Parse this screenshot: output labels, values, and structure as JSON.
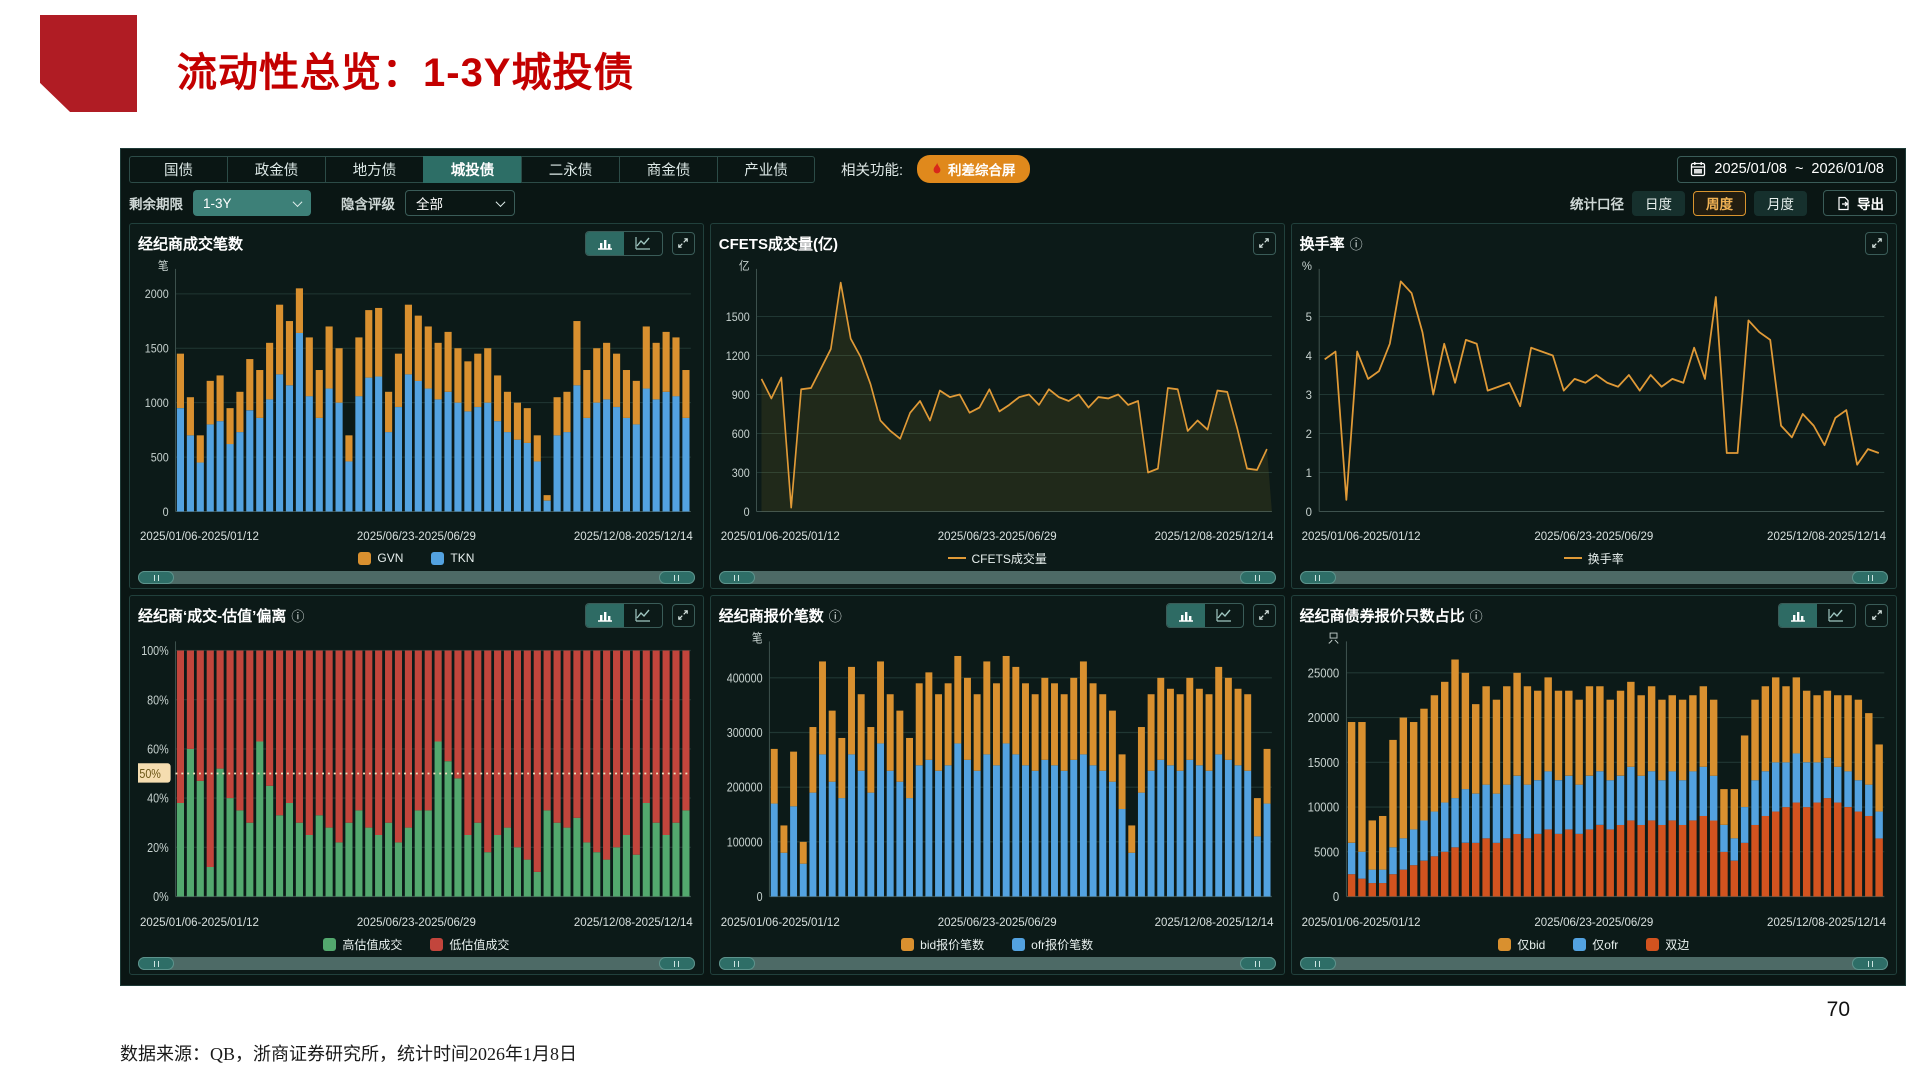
{
  "page": {
    "title": "流动性总览：1-3Y城投债",
    "page_number": "70",
    "source_note": "数据来源：QB，浙商证券研究所，统计时间2026年1月8日"
  },
  "toolbar": {
    "tabs": [
      {
        "label": "国债",
        "active": false
      },
      {
        "label": "政金债",
        "active": false
      },
      {
        "label": "地方债",
        "active": false
      },
      {
        "label": "城投债",
        "active": true
      },
      {
        "label": "二永债",
        "active": false
      },
      {
        "label": "商金债",
        "active": false
      },
      {
        "label": "产业债",
        "active": false
      }
    ],
    "related_label": "相关功能:",
    "related_button": "利差综合屏",
    "date_range": {
      "start": "2025/01/08",
      "separator": "~",
      "end": "2026/01/08"
    },
    "filters": {
      "term_label": "剩余期限",
      "term_value": "1-3Y",
      "rating_label": "隐含评级",
      "rating_value": "全部"
    },
    "caliber": {
      "label": "统计口径",
      "options": [
        {
          "label": "日度",
          "active": false
        },
        {
          "label": "周度",
          "active": true
        },
        {
          "label": "月度",
          "active": false
        }
      ]
    },
    "export_label": "导出"
  },
  "colors": {
    "accent_orange": "#e0891c",
    "bar_orange": "#d9902f",
    "bar_blue": "#53a2e0",
    "bar_green": "#53a86e",
    "bar_red": "#c2453c",
    "bar_redorange": "#d2531f",
    "line_orange": "#e09a37",
    "active_teal": "#2d6e66",
    "title_red": "#c30000"
  },
  "charts": [
    {
      "title": "经纪商成交笔数",
      "info_icon": "",
      "x_labels": [
        "2025/01/06-2025/01/12",
        "2025/06/23-2025/06/29",
        "2025/12/08-2025/12/14"
      ],
      "legend": [
        {
          "label": "GVN",
          "color": "#d9902f",
          "type": "box"
        },
        {
          "label": "TKN",
          "color": "#53a2e0",
          "type": "box"
        }
      ],
      "plot": {
        "type": "bars",
        "unit": "笔",
        "ymax": 2150,
        "y_ticks": [
          {
            "v": 0,
            "label": "0"
          },
          {
            "v": 500,
            "label": "500"
          },
          {
            "v": 1000,
            "label": "1000"
          },
          {
            "v": 1500,
            "label": "1500"
          },
          {
            "v": 2000,
            "label": "2000"
          }
        ],
        "series": [
          {
            "name": "TKN",
            "color": "#53a2e0",
            "values": [
              950,
              700,
              450,
              800,
              830,
              620,
              730,
              930,
              860,
              1030,
              1260,
              1160,
              1640,
              1060,
              860,
              1130,
              1000,
              460,
              1060,
              1230,
              1240,
              730,
              960,
              1260,
              1200,
              1130,
              1030,
              1100,
              1000,
              920,
              960,
              1000,
              830,
              730,
              660,
              630,
              460,
              100,
              700,
              730,
              1160,
              860,
              1000,
              1030,
              960,
              860,
              800,
              1130,
              1030,
              1100,
              1060,
              860
            ]
          },
          {
            "name": "GVN",
            "color": "#d9902f",
            "values": [
              500,
              350,
              250,
              400,
              420,
              330,
              370,
              470,
              440,
              520,
              640,
              590,
              410,
              540,
              440,
              570,
              500,
              240,
              540,
              620,
              630,
              370,
              490,
              640,
              600,
              570,
              520,
              550,
              500,
              460,
              490,
              500,
              420,
              370,
              340,
              320,
              240,
              50,
              350,
              370,
              590,
              440,
              500,
              520,
              490,
              440,
              400,
              570,
              520,
              550,
              540,
              440
            ]
          }
        ]
      }
    },
    {
      "title": "CFETS成交量(亿)",
      "info_icon": "",
      "x_labels": [
        "2025/01/06-2025/01/12",
        "2025/06/23-2025/06/29",
        "2025/12/08-2025/12/14"
      ],
      "legend": [
        {
          "label": "CFETS成交量",
          "color": "#e09a37",
          "type": "line"
        }
      ],
      "plot": {
        "type": "line",
        "unit": "亿",
        "ymax": 1800,
        "color": "#e09a37",
        "area": true,
        "y_ticks": [
          {
            "v": 0,
            "label": "0"
          },
          {
            "v": 300,
            "label": "300"
          },
          {
            "v": 600,
            "label": "600"
          },
          {
            "v": 900,
            "label": "900"
          },
          {
            "v": 1200,
            "label": "1200"
          },
          {
            "v": 1500,
            "label": "1500"
          }
        ],
        "values": [
          1020,
          870,
          1030,
          30,
          940,
          950,
          1100,
          1250,
          1760,
          1330,
          1190,
          980,
          700,
          620,
          560,
          760,
          850,
          700,
          930,
          880,
          900,
          760,
          800,
          940,
          770,
          820,
          880,
          900,
          820,
          940,
          880,
          850,
          900,
          800,
          880,
          870,
          900,
          820,
          850,
          300,
          330,
          950,
          940,
          620,
          700,
          630,
          930,
          920,
          640,
          330,
          320,
          480
        ]
      }
    },
    {
      "title": "换手率",
      "info_icon": "ⓘ",
      "x_labels": [
        "2025/01/06-2025/01/12",
        "2025/06/23-2025/06/29",
        "2025/12/08-2025/12/14"
      ],
      "legend": [
        {
          "label": "换手率",
          "color": "#e09a37",
          "type": "line"
        }
      ],
      "plot": {
        "type": "line",
        "unit": "%",
        "ymax": 6,
        "color": "#e09a37",
        "area": false,
        "y_ticks": [
          {
            "v": 0,
            "label": "0"
          },
          {
            "v": 1,
            "label": "1"
          },
          {
            "v": 2,
            "label": "2"
          },
          {
            "v": 3,
            "label": "3"
          },
          {
            "v": 4,
            "label": "4"
          },
          {
            "v": 5,
            "label": "5"
          }
        ],
        "values": [
          3.9,
          4.1,
          0.3,
          4.1,
          3.4,
          3.6,
          4.3,
          5.9,
          5.6,
          4.6,
          3.0,
          4.3,
          3.3,
          4.4,
          4.3,
          3.1,
          3.2,
          3.3,
          2.7,
          4.2,
          4.1,
          4.0,
          3.1,
          3.4,
          3.3,
          3.5,
          3.3,
          3.2,
          3.5,
          3.1,
          3.5,
          3.2,
          3.4,
          3.3,
          4.2,
          3.4,
          5.5,
          1.5,
          1.5,
          4.9,
          4.6,
          4.4,
          2.2,
          1.9,
          2.5,
          2.2,
          1.7,
          2.4,
          2.6,
          1.2,
          1.6,
          1.5
        ]
      }
    },
    {
      "title": "经纪商‘成交-估值’偏离",
      "info_icon": "ⓘ",
      "x_labels": [
        "2025/01/06-2025/01/12",
        "2025/06/23-2025/06/29",
        "2025/12/08-2025/12/14"
      ],
      "legend": [
        {
          "label": "高估值成交",
          "color": "#53a86e",
          "type": "box"
        },
        {
          "label": "低估值成交",
          "color": "#c2453c",
          "type": "box"
        }
      ],
      "plot": {
        "type": "bars",
        "unit": "",
        "ymax": 100,
        "ref_line": {
          "v": 50,
          "label": "50%"
        },
        "y_ticks": [
          {
            "v": 0,
            "label": "0%"
          },
          {
            "v": 20,
            "label": "20%"
          },
          {
            "v": 40,
            "label": "40%"
          },
          {
            "v": 60,
            "label": "60%"
          },
          {
            "v": 80,
            "label": "80%"
          },
          {
            "v": 100,
            "label": "100%"
          }
        ],
        "series": [
          {
            "name": "高估值成交",
            "color": "#53a86e",
            "values": [
              38,
              60,
              47,
              12,
              52,
              40,
              35,
              30,
              63,
              45,
              33,
              38,
              30,
              25,
              33,
              28,
              22,
              30,
              35,
              28,
              25,
              30,
              22,
              28,
              35,
              35,
              63,
              55,
              48,
              25,
              30,
              18,
              25,
              28,
              20,
              15,
              10,
              35,
              30,
              28,
              32,
              22,
              18,
              15,
              20,
              25,
              17,
              38,
              30,
              25,
              30,
              35
            ]
          },
          {
            "name": "低估值成交",
            "color": "#c2453c",
            "values": [
              62,
              40,
              53,
              88,
              48,
              60,
              65,
              70,
              37,
              55,
              67,
              62,
              70,
              75,
              67,
              72,
              78,
              70,
              65,
              72,
              75,
              70,
              78,
              72,
              65,
              65,
              37,
              45,
              52,
              75,
              70,
              82,
              75,
              72,
              80,
              85,
              90,
              65,
              70,
              72,
              68,
              78,
              82,
              85,
              80,
              75,
              83,
              62,
              70,
              75,
              70,
              65
            ]
          }
        ]
      }
    },
    {
      "title": "经纪商报价笔数",
      "info_icon": "ⓘ",
      "x_labels": [
        "2025/01/06-2025/01/12",
        "2025/06/23-2025/06/29",
        "2025/12/08-2025/12/14"
      ],
      "legend": [
        {
          "label": "bid报价笔数",
          "color": "#d9902f",
          "type": "box"
        },
        {
          "label": "ofr报价笔数",
          "color": "#53a2e0",
          "type": "box"
        }
      ],
      "plot": {
        "type": "bars",
        "unit": "笔",
        "ymax": 450000,
        "y_ticks": [
          {
            "v": 0,
            "label": "0"
          },
          {
            "v": 100000,
            "label": "100000"
          },
          {
            "v": 200000,
            "label": "200000"
          },
          {
            "v": 300000,
            "label": "300000"
          },
          {
            "v": 400000,
            "label": "400000"
          }
        ],
        "series": [
          {
            "name": "ofr报价笔数",
            "color": "#53a2e0",
            "values": [
              170000,
              80000,
              165000,
              60000,
              190000,
              260000,
              210000,
              180000,
              260000,
              230000,
              190000,
              280000,
              230000,
              210000,
              180000,
              240000,
              250000,
              230000,
              240000,
              280000,
              250000,
              230000,
              260000,
              240000,
              280000,
              260000,
              240000,
              230000,
              250000,
              240000,
              230000,
              250000,
              260000,
              240000,
              230000,
              210000,
              160000,
              80000,
              190000,
              230000,
              250000,
              240000,
              230000,
              250000,
              240000,
              230000,
              260000,
              250000,
              240000,
              230000,
              110000,
              170000
            ]
          },
          {
            "name": "bid报价笔数",
            "color": "#d9902f",
            "values": [
              100000,
              50000,
              100000,
              40000,
              120000,
              170000,
              130000,
              110000,
              160000,
              140000,
              120000,
              150000,
              140000,
              130000,
              110000,
              150000,
              160000,
              140000,
              150000,
              160000,
              150000,
              140000,
              170000,
              150000,
              160000,
              160000,
              150000,
              140000,
              150000,
              150000,
              140000,
              150000,
              170000,
              150000,
              140000,
              130000,
              100000,
              50000,
              120000,
              140000,
              150000,
              140000,
              140000,
              150000,
              140000,
              140000,
              160000,
              150000,
              140000,
              140000,
              70000,
              100000
            ]
          }
        ]
      }
    },
    {
      "title": "经纪商债券报价只数占比",
      "info_icon": "ⓘ",
      "x_labels": [
        "2025/01/06-2025/01/12",
        "2025/06/23-2025/06/29",
        "2025/12/08-2025/12/14"
      ],
      "legend": [
        {
          "label": "仅bid",
          "color": "#d9902f",
          "type": "box"
        },
        {
          "label": "仅ofr",
          "color": "#53a2e0",
          "type": "box"
        },
        {
          "label": "双边",
          "color": "#d2531f",
          "type": "box"
        }
      ],
      "plot": {
        "type": "bars",
        "unit": "只",
        "ymax": 27500,
        "y_ticks": [
          {
            "v": 0,
            "label": "0"
          },
          {
            "v": 5000,
            "label": "5000"
          },
          {
            "v": 10000,
            "label": "10000"
          },
          {
            "v": 15000,
            "label": "15000"
          },
          {
            "v": 20000,
            "label": "20000"
          },
          {
            "v": 25000,
            "label": "25000"
          }
        ],
        "series": [
          {
            "name": "双边",
            "color": "#d2531f",
            "values": [
              2500,
              2000,
              1500,
              1500,
              2500,
              3000,
              3500,
              4000,
              4500,
              5000,
              5500,
              6000,
              6000,
              6500,
              6000,
              6500,
              7000,
              6500,
              7000,
              7500,
              7000,
              7500,
              7000,
              7500,
              8000,
              7500,
              8000,
              8500,
              8000,
              8500,
              8000,
              8500,
              8000,
              8500,
              9000,
              8500,
              5000,
              4000,
              6000,
              8000,
              9000,
              9500,
              10000,
              10500,
              10000,
              10500,
              11000,
              10500,
              10000,
              9500,
              9000,
              6500
            ]
          },
          {
            "name": "仅ofr",
            "color": "#53a2e0",
            "values": [
              3500,
              3000,
              1500,
              1500,
              3000,
              3500,
              4000,
              4500,
              5000,
              5500,
              5500,
              6000,
              5500,
              6000,
              5500,
              6000,
              6500,
              6000,
              6000,
              6500,
              6000,
              6000,
              5500,
              6000,
              6000,
              5500,
              5500,
              6000,
              5500,
              5500,
              5000,
              5500,
              5000,
              5500,
              5500,
              5000,
              3000,
              2500,
              4000,
              5000,
              5000,
              5500,
              5000,
              5500,
              5000,
              4500,
              4500,
              4000,
              4000,
              3500,
              3500,
              3000
            ]
          },
          {
            "name": "仅bid",
            "color": "#d9902f",
            "values": [
              13500,
              14500,
              5500,
              6000,
              12000,
              13500,
              12000,
              12500,
              13000,
              13500,
              15500,
              13000,
              10000,
              11000,
              10500,
              11000,
              11500,
              11000,
              10000,
              10500,
              10000,
              9500,
              9500,
              10000,
              9500,
              9000,
              9500,
              9500,
              9000,
              9500,
              9000,
              8500,
              9000,
              8500,
              9000,
              8500,
              4000,
              5500,
              8000,
              9000,
              9500,
              9500,
              8500,
              8500,
              8000,
              7500,
              7500,
              8000,
              8500,
              9000,
              8000,
              7500
            ]
          }
        ]
      }
    }
  ]
}
